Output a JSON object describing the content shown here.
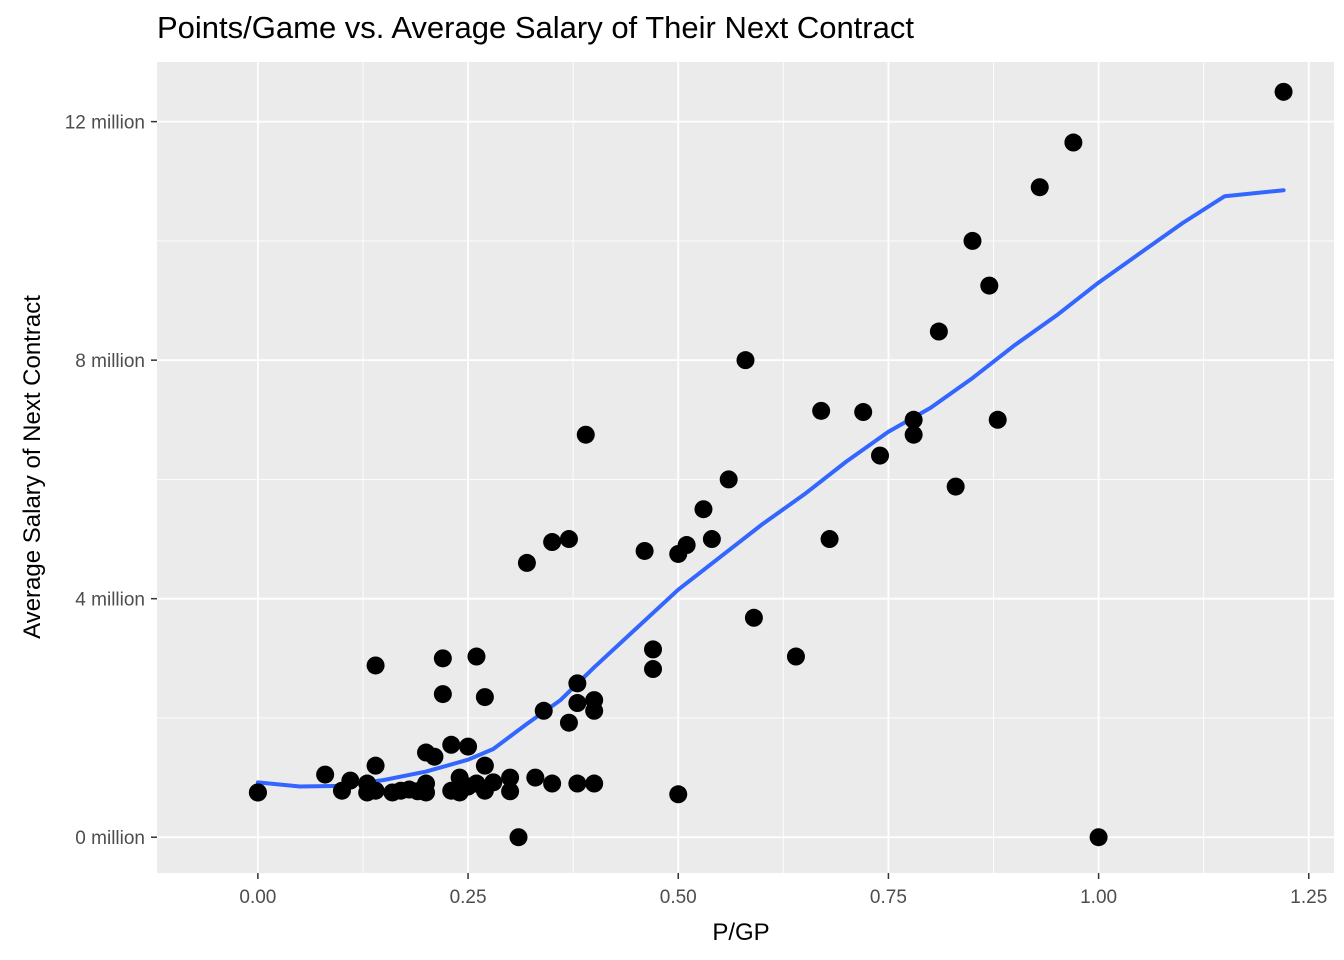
{
  "chart_data": {
    "type": "scatter",
    "title": "Points/Game vs. Average Salary of Their Next Contract",
    "xlabel": "P/GP",
    "ylabel": "Average Salary of Next Contract",
    "xlim": [
      -0.12,
      1.28
    ],
    "ylim": [
      -0.6,
      13.0
    ],
    "x_ticks": [
      0.0,
      0.25,
      0.5,
      0.75,
      1.0,
      1.25
    ],
    "x_tick_labels": [
      "0.00",
      "0.25",
      "0.50",
      "0.75",
      "1.00",
      "1.25"
    ],
    "y_ticks": [
      0,
      4,
      8,
      12
    ],
    "y_tick_labels": [
      "0 million",
      "4 million",
      "8 million",
      "12 million"
    ],
    "y_unit": "million",
    "grid": true,
    "background": "#ebebeb",
    "point_color": "#000000",
    "smooth_color": "#3366ff",
    "points": [
      {
        "x": 0.0,
        "y": 0.75
      },
      {
        "x": 0.0,
        "y": 0.75
      },
      {
        "x": 0.08,
        "y": 1.05
      },
      {
        "x": 0.1,
        "y": 0.78
      },
      {
        "x": 0.11,
        "y": 0.95
      },
      {
        "x": 0.13,
        "y": 0.9
      },
      {
        "x": 0.13,
        "y": 0.75
      },
      {
        "x": 0.14,
        "y": 0.78
      },
      {
        "x": 0.14,
        "y": 1.2
      },
      {
        "x": 0.14,
        "y": 2.88
      },
      {
        "x": 0.16,
        "y": 0.75
      },
      {
        "x": 0.17,
        "y": 0.78
      },
      {
        "x": 0.18,
        "y": 0.8
      },
      {
        "x": 0.19,
        "y": 0.77
      },
      {
        "x": 0.2,
        "y": 0.75
      },
      {
        "x": 0.2,
        "y": 0.9
      },
      {
        "x": 0.2,
        "y": 1.42
      },
      {
        "x": 0.21,
        "y": 1.35
      },
      {
        "x": 0.22,
        "y": 2.4
      },
      {
        "x": 0.22,
        "y": 3.0
      },
      {
        "x": 0.23,
        "y": 1.55
      },
      {
        "x": 0.23,
        "y": 0.78
      },
      {
        "x": 0.24,
        "y": 1.0
      },
      {
        "x": 0.24,
        "y": 0.75
      },
      {
        "x": 0.25,
        "y": 0.85
      },
      {
        "x": 0.25,
        "y": 1.52
      },
      {
        "x": 0.26,
        "y": 0.9
      },
      {
        "x": 0.26,
        "y": 3.03
      },
      {
        "x": 0.27,
        "y": 0.78
      },
      {
        "x": 0.27,
        "y": 1.2
      },
      {
        "x": 0.27,
        "y": 2.35
      },
      {
        "x": 0.28,
        "y": 0.92
      },
      {
        "x": 0.3,
        "y": 0.77
      },
      {
        "x": 0.3,
        "y": 1.0
      },
      {
        "x": 0.31,
        "y": 0.0
      },
      {
        "x": 0.32,
        "y": 4.6
      },
      {
        "x": 0.33,
        "y": 1.0
      },
      {
        "x": 0.34,
        "y": 2.12
      },
      {
        "x": 0.35,
        "y": 0.9
      },
      {
        "x": 0.35,
        "y": 4.95
      },
      {
        "x": 0.37,
        "y": 5.0
      },
      {
        "x": 0.37,
        "y": 1.92
      },
      {
        "x": 0.38,
        "y": 0.9
      },
      {
        "x": 0.38,
        "y": 2.25
      },
      {
        "x": 0.38,
        "y": 2.58
      },
      {
        "x": 0.39,
        "y": 6.75
      },
      {
        "x": 0.4,
        "y": 2.12
      },
      {
        "x": 0.4,
        "y": 2.3
      },
      {
        "x": 0.4,
        "y": 0.9
      },
      {
        "x": 0.46,
        "y": 4.8
      },
      {
        "x": 0.47,
        "y": 3.15
      },
      {
        "x": 0.47,
        "y": 2.82
      },
      {
        "x": 0.5,
        "y": 4.75
      },
      {
        "x": 0.5,
        "y": 0.72
      },
      {
        "x": 0.51,
        "y": 4.9
      },
      {
        "x": 0.53,
        "y": 5.5
      },
      {
        "x": 0.54,
        "y": 5.0
      },
      {
        "x": 0.56,
        "y": 6.0
      },
      {
        "x": 0.58,
        "y": 8.0
      },
      {
        "x": 0.59,
        "y": 3.68
      },
      {
        "x": 0.64,
        "y": 3.03
      },
      {
        "x": 0.67,
        "y": 7.15
      },
      {
        "x": 0.68,
        "y": 5.0
      },
      {
        "x": 0.72,
        "y": 7.13
      },
      {
        "x": 0.74,
        "y": 6.4
      },
      {
        "x": 0.78,
        "y": 7.0
      },
      {
        "x": 0.78,
        "y": 6.75
      },
      {
        "x": 0.81,
        "y": 8.48
      },
      {
        "x": 0.83,
        "y": 5.88
      },
      {
        "x": 0.85,
        "y": 10.0
      },
      {
        "x": 0.87,
        "y": 9.25
      },
      {
        "x": 0.88,
        "y": 7.0
      },
      {
        "x": 0.93,
        "y": 10.9
      },
      {
        "x": 0.97,
        "y": 11.65
      },
      {
        "x": 1.0,
        "y": 0.0
      },
      {
        "x": 1.22,
        "y": 12.5
      }
    ],
    "smooth": {
      "x": [
        0.0,
        0.05,
        0.1,
        0.15,
        0.2,
        0.25,
        0.28,
        0.32,
        0.36,
        0.4,
        0.45,
        0.5,
        0.55,
        0.6,
        0.65,
        0.7,
        0.75,
        0.8,
        0.85,
        0.9,
        0.95,
        1.0,
        1.05,
        1.1,
        1.15,
        1.22
      ],
      "y": [
        0.92,
        0.85,
        0.86,
        0.96,
        1.1,
        1.3,
        1.48,
        1.9,
        2.3,
        2.85,
        3.5,
        4.15,
        4.7,
        5.25,
        5.75,
        6.3,
        6.8,
        7.2,
        7.7,
        8.25,
        8.75,
        9.3,
        9.8,
        10.3,
        10.75,
        10.85
      ]
    }
  }
}
